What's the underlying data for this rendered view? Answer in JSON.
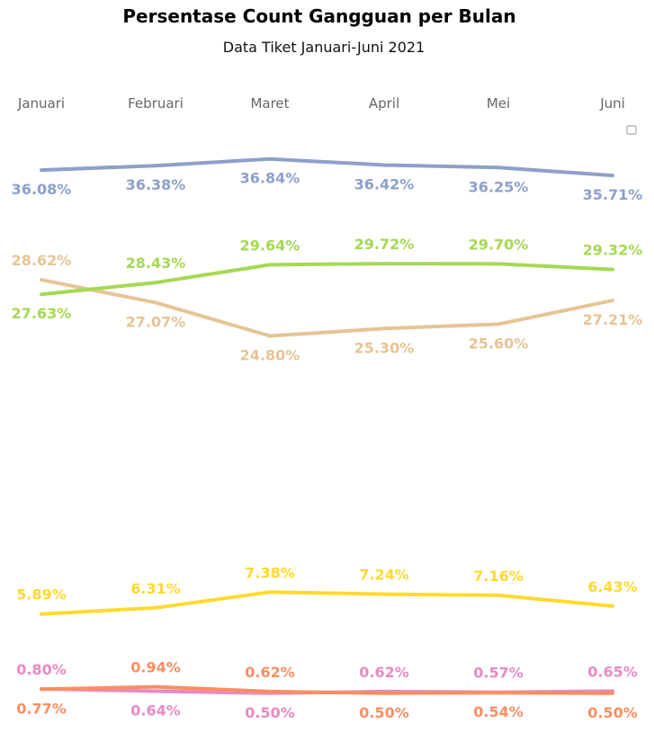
{
  "chart_data": {
    "type": "line",
    "title": "Persentase Count Gangguan per Bulan",
    "subtitle": "Data Tiket Januari-Juni 2021",
    "categories": [
      "Januari",
      "Februari",
      "Maret",
      "April",
      "Mei",
      "Juni"
    ],
    "xlabel": "",
    "ylabel": "",
    "ylim": [
      0,
      38
    ],
    "grid": false,
    "legend": "top-right",
    "series": [
      {
        "color": "#8da0cb",
        "values": [
          36.08,
          36.38,
          36.84,
          36.42,
          36.25,
          35.71
        ],
        "labels": [
          "36.08%",
          "36.38%",
          "36.84%",
          "36.42%",
          "36.25%",
          "35.71%"
        ],
        "label_pos": [
          "below",
          "below",
          "below",
          "below",
          "below",
          "below"
        ]
      },
      {
        "color": "#a6d854",
        "values": [
          27.63,
          28.43,
          29.64,
          29.72,
          29.7,
          29.32
        ],
        "labels": [
          "27.63%",
          "28.43%",
          "29.64%",
          "29.72%",
          "29.70%",
          "29.32%"
        ],
        "label_pos": [
          "below",
          "above",
          "above",
          "above",
          "above",
          "above"
        ]
      },
      {
        "color": "#e5c494",
        "values": [
          28.62,
          27.07,
          24.8,
          25.3,
          25.6,
          27.21
        ],
        "labels": [
          "28.62%",
          "27.07%",
          "24.80%",
          "25.30%",
          "25.60%",
          "27.21%"
        ],
        "label_pos": [
          "above",
          "below",
          "below",
          "below",
          "below",
          "below"
        ]
      },
      {
        "color": "#ffd92f",
        "values": [
          5.89,
          6.31,
          7.38,
          7.24,
          7.16,
          6.43
        ],
        "labels": [
          "5.89%",
          "6.31%",
          "7.38%",
          "7.24%",
          "7.16%",
          "6.43%"
        ],
        "label_pos": [
          "above",
          "above",
          "above",
          "above",
          "above",
          "above"
        ]
      },
      {
        "color": "#e78ac3",
        "values": [
          0.8,
          0.64,
          0.5,
          0.62,
          0.57,
          0.65
        ],
        "labels": [
          "0.80%",
          "0.64%",
          "0.50%",
          "0.62%",
          "0.57%",
          "0.65%"
        ],
        "label_pos": [
          "above",
          "below",
          "below",
          "above",
          "above",
          "above"
        ]
      },
      {
        "color": "#fc8d62",
        "values": [
          0.77,
          0.94,
          0.62,
          0.5,
          0.54,
          0.5
        ],
        "labels": [
          "0.77%",
          "0.94%",
          "0.62%",
          "0.50%",
          "0.54%",
          "0.50%"
        ],
        "label_pos": [
          "below",
          "above",
          "above",
          "below",
          "below",
          "below"
        ]
      }
    ]
  }
}
